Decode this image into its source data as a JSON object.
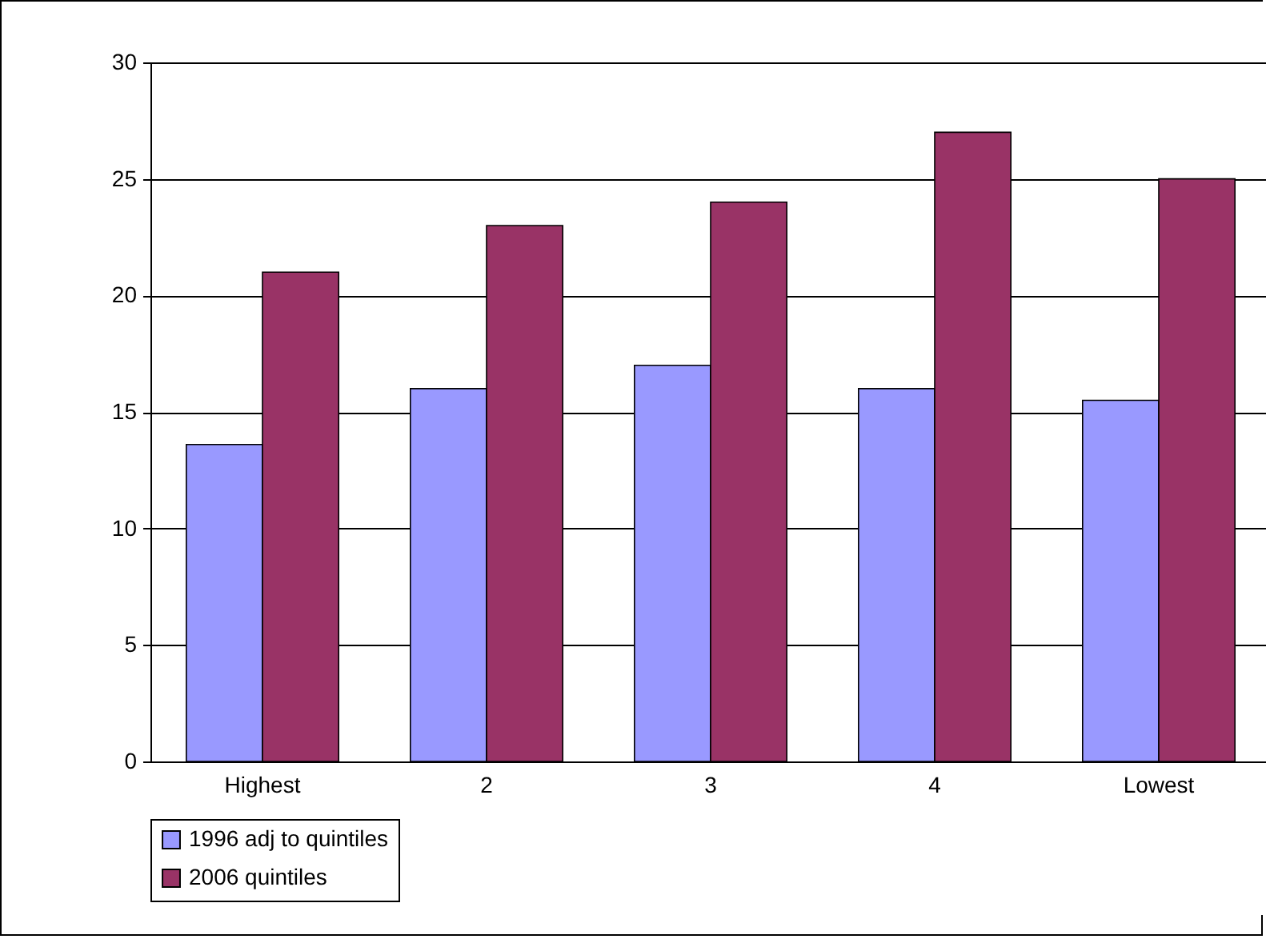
{
  "chart_data": {
    "type": "bar",
    "categories": [
      "Highest",
      "2",
      "3",
      "4",
      "Lowest"
    ],
    "series": [
      {
        "name": "1996 adj to quintiles",
        "color": "#9999ff",
        "values": [
          13.6,
          16,
          17,
          16,
          15.5
        ]
      },
      {
        "name": "2006 quintiles",
        "color": "#993366",
        "values": [
          21,
          23,
          24,
          27,
          25
        ]
      }
    ],
    "ylim": [
      0,
      30
    ],
    "yticks": [
      0,
      5,
      10,
      15,
      20,
      25,
      30
    ],
    "grid": "y",
    "legend": "bottom"
  }
}
